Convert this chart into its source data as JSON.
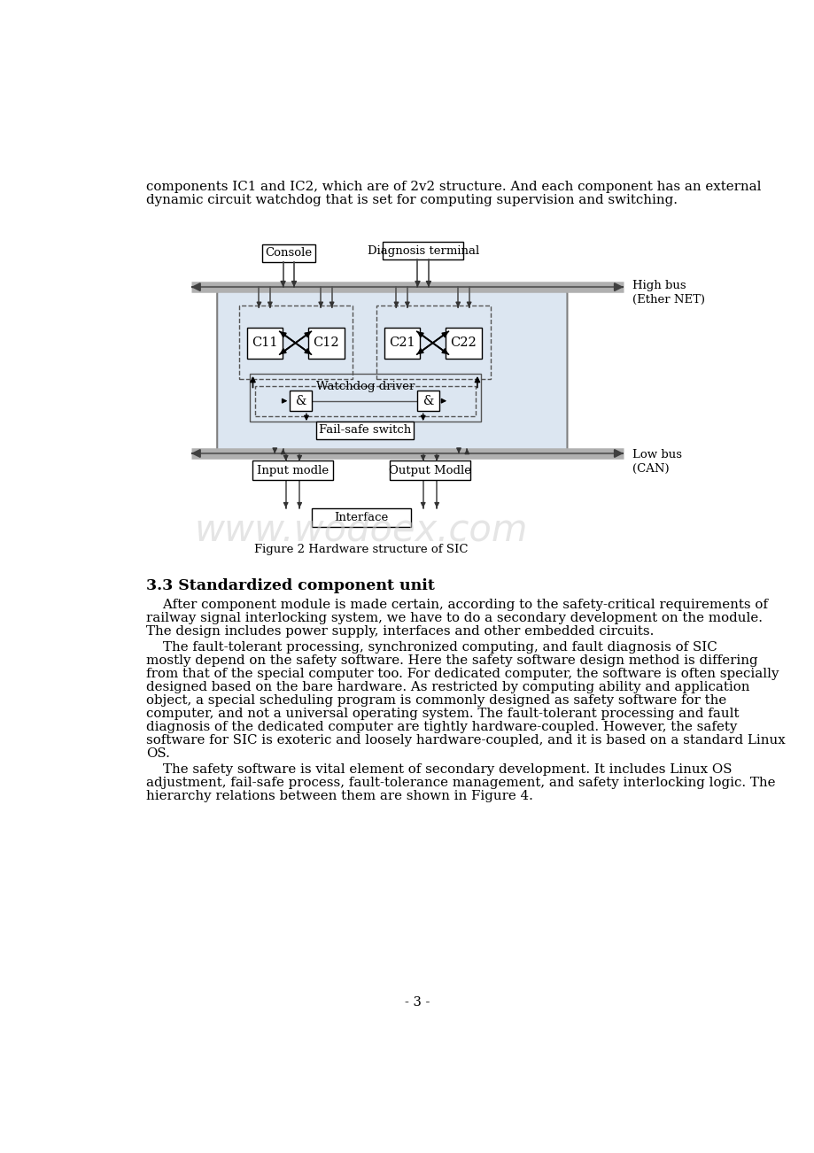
{
  "page_bg": "#ffffff",
  "text_color": "#000000",
  "para1": "components IC1 and IC2, which are of 2v2 structure. And each component has an external",
  "para1b": "dynamic circuit watchdog that is set for computing supervision and switching.",
  "fig_caption": "Figure 2 Hardware structure of SIC",
  "section_title": "3.3 Standardized component unit",
  "page_num": "- 3 -",
  "watermark": "www.wodoex.com",
  "diagram_bg": "#dce6f1",
  "high_bus_label": "High bus\n(Ether NET)",
  "low_bus_label": "Low bus\n(CAN)",
  "para1_lines": [
    "    After component module is made certain, according to the safety-critical requirements of",
    "railway signal interlocking system, we have to do a secondary development on the module.",
    "The design includes power supply, interfaces and other embedded circuits."
  ],
  "para2_lines": [
    "    The fault-tolerant processing, synchronized computing, and fault diagnosis of SIC",
    "mostly depend on the safety software. Here the safety software design method is differing",
    "from that of the special computer too. For dedicated computer, the software is often specially",
    "designed based on the bare hardware. As restricted by computing ability and application",
    "object, a special scheduling program is commonly designed as safety software for the",
    "computer, and not a universal operating system. The fault-tolerant processing and fault",
    "diagnosis of the dedicated computer are tightly hardware-coupled. However, the safety",
    "software for SIC is exoteric and loosely hardware-coupled, and it is based on a standard Linux",
    "OS."
  ],
  "para3_lines": [
    "    The safety software is vital element of secondary development. It includes Linux OS",
    "adjustment, fail-safe process, fault-tolerance management, and safety interlocking logic. The",
    "hierarchy relations between them are shown in Figure 4."
  ]
}
